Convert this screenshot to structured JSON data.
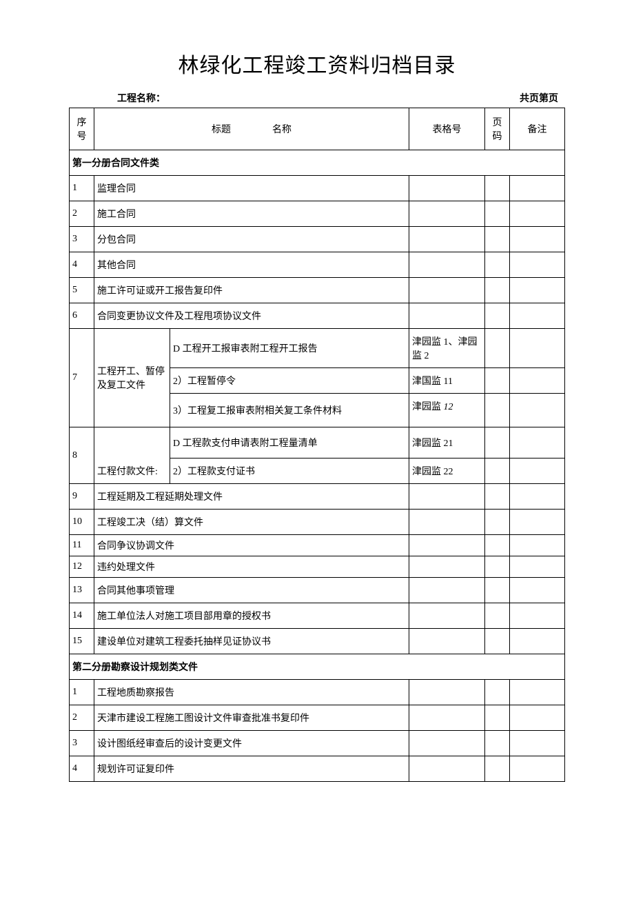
{
  "document": {
    "title": "林绿化工程竣工资料归档目录",
    "project_label": "工程名称：",
    "page_info": "共页第页"
  },
  "headers": {
    "seq": "序号",
    "title_a": "标题",
    "title_b": "名称",
    "form": "表格号",
    "page": "页码",
    "note": "备注"
  },
  "sections": {
    "s1": "第一分册合同文件类",
    "s2": "第二分册勘察设计规划类文件"
  },
  "rows": {
    "r1_1": {
      "seq": "1",
      "title": "监理合同"
    },
    "r1_2": {
      "seq": "2",
      "title": "施工合同"
    },
    "r1_3": {
      "seq": "3",
      "title": "分包合同"
    },
    "r1_4": {
      "seq": "4",
      "title": "其他合同"
    },
    "r1_5": {
      "seq": "5",
      "title": "施工许可证或开工报告复印件"
    },
    "r1_6": {
      "seq": "6",
      "title": "合同变更协议文件及工程甩项协议文件"
    },
    "r1_7": {
      "seq": "7",
      "title_a": "工程开工、暂停及复工文件",
      "sub1": {
        "title": "D 工程开工报审表附工程开工报告",
        "form": "津园监 1、津园监 2"
      },
      "sub2": {
        "title": "2）工程暂停令",
        "form": "津国监 11"
      },
      "sub3": {
        "title": "3）工程复工报审表附相关复工条件材料",
        "form_a": "津园监 ",
        "form_b": "12"
      }
    },
    "r1_8": {
      "seq": "8",
      "title_a": "工程付款文件:",
      "sub1": {
        "title": "D 工程款支付申请表附工程量清单",
        "form": "津园监 21"
      },
      "sub2": {
        "title": "2）工程款支付证书",
        "form": "津园监 22"
      }
    },
    "r1_9": {
      "seq": "9",
      "title": "工程延期及工程延期处理文件"
    },
    "r1_10": {
      "seq": "10",
      "title": "工程竣工决（结）算文件"
    },
    "r1_11": {
      "seq": "11",
      "title": "合同争议协调文件"
    },
    "r1_12": {
      "seq": "12",
      "title": "违约处理文件"
    },
    "r1_13": {
      "seq": "13",
      "title": "合同其他事项管理"
    },
    "r1_14": {
      "seq": "14",
      "title": "施工单位法人对施工项目部用章的授权书"
    },
    "r1_15": {
      "seq": "15",
      "title": "建设单位对建筑工程委托抽样见证协议书"
    },
    "r2_1": {
      "seq": "1",
      "title": "工程地质勘察报告"
    },
    "r2_2": {
      "seq": "2",
      "title": "天津市建设工程施工图设计文件审查批准书复印件"
    },
    "r2_3": {
      "seq": "3",
      "title": "设计图纸经审查后的设计变更文件"
    },
    "r2_4": {
      "seq": "4",
      "title": "规划许可证复印件"
    }
  }
}
